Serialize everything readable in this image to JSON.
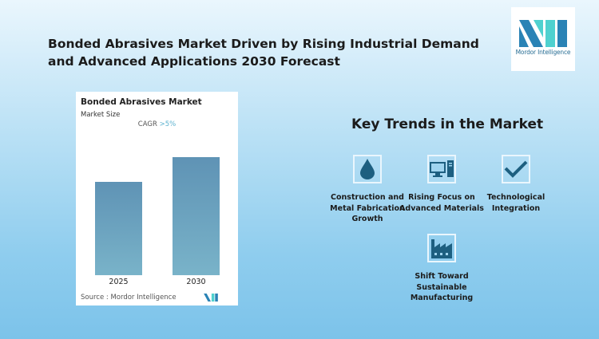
{
  "header": {
    "title": "Bonded Abrasives Market Driven by Rising Industrial Demand and Advanced Applications 2030 Forecast"
  },
  "logo": {
    "text": "Mordor Intelligence",
    "colors": [
      "#2a83b5",
      "#4fd1cf"
    ]
  },
  "chart_data": {
    "type": "bar",
    "title": "Bonded Abrasives Market",
    "subtitle": "Market Size",
    "annotation": {
      "label": "CAGR",
      "value": ">5%"
    },
    "categories": [
      "2025",
      "2030"
    ],
    "values": [
      0.79,
      1.0
    ],
    "xlabel": "",
    "ylabel": "",
    "grid": false,
    "bar_color": "#6a9fbe",
    "source": "Source :  Mordor Intelligence"
  },
  "trends": {
    "heading": "Key Trends in the Market",
    "items": [
      {
        "label": "Construction and Metal Fabrication Growth",
        "icon": "droplet-icon"
      },
      {
        "label": "Rising Focus on Advanced Materials",
        "icon": "computer-icon"
      },
      {
        "label": "Technological Integration",
        "icon": "checkmark-icon"
      },
      {
        "label": "Shift Toward Sustainable Manufacturing",
        "icon": "factory-icon"
      }
    ],
    "icon_color": "#1d5f80"
  }
}
